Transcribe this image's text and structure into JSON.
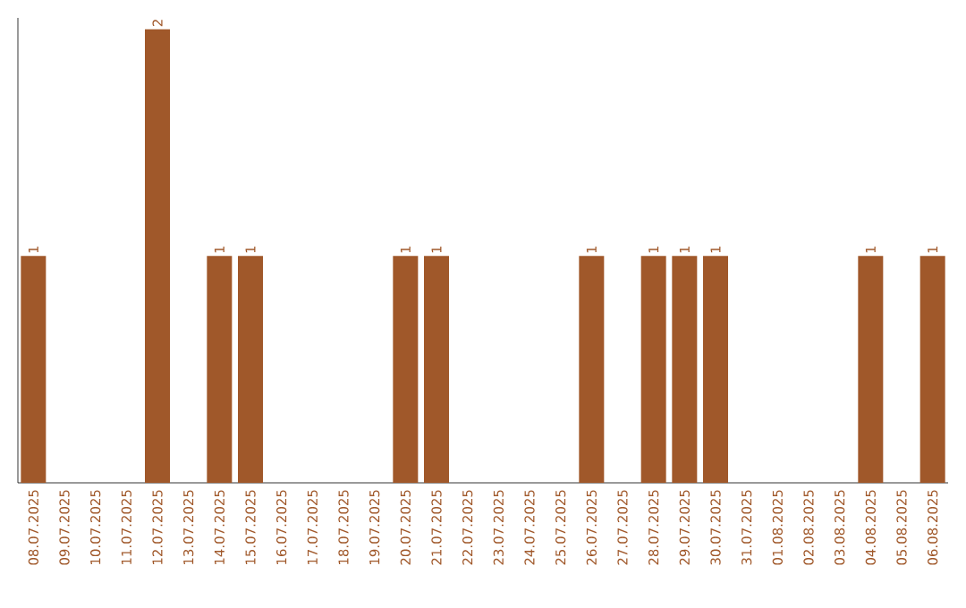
{
  "chart_data": {
    "type": "bar",
    "categories": [
      "08.07.2025",
      "09.07.2025",
      "10.07.2025",
      "11.07.2025",
      "12.07.2025",
      "13.07.2025",
      "14.07.2025",
      "15.07.2025",
      "16.07.2025",
      "17.07.2025",
      "18.07.2025",
      "19.07.2025",
      "20.07.2025",
      "21.07.2025",
      "22.07.2025",
      "23.07.2025",
      "24.07.2025",
      "25.07.2025",
      "26.07.2025",
      "27.07.2025",
      "28.07.2025",
      "29.07.2025",
      "30.07.2025",
      "31.07.2025",
      "01.08.2025",
      "02.08.2025",
      "03.08.2025",
      "04.08.2025",
      "05.08.2025",
      "06.08.2025"
    ],
    "values": [
      1,
      0,
      0,
      0,
      2,
      0,
      1,
      1,
      0,
      0,
      0,
      0,
      1,
      1,
      0,
      0,
      0,
      0,
      1,
      0,
      1,
      1,
      1,
      0,
      0,
      0,
      0,
      1,
      0,
      1
    ],
    "value_labels": [
      "1",
      null,
      null,
      null,
      "2",
      null,
      "1",
      "1",
      null,
      null,
      null,
      null,
      "1",
      "1",
      null,
      null,
      null,
      null,
      "1",
      null,
      "1",
      "1",
      "1",
      null,
      null,
      null,
      null,
      "1",
      null,
      "1"
    ],
    "color": "#a0582a",
    "ylim": [
      0,
      2.05
    ],
    "tick_labels": "x"
  }
}
